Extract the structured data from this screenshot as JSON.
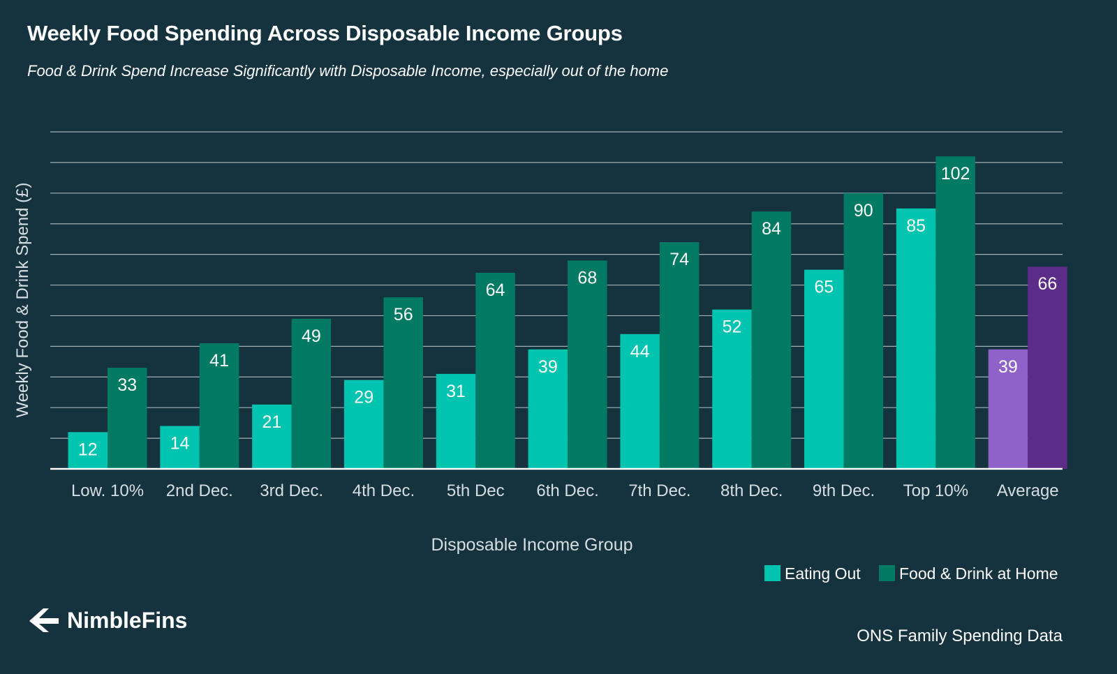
{
  "header": {
    "title": "Weekly Food Spending Across Disposable Income Groups",
    "subtitle": "Food & Drink Spend Increase Significantly with Disposable Income, especially out of the home"
  },
  "footer": {
    "brand": "NimbleFins",
    "brand_icon": "nimblefins-logo-icon",
    "source": "ONS Family Spending Data"
  },
  "colors": {
    "background": "#15333f",
    "eating_out": "#00c4b0",
    "food_at_home": "#007a63",
    "average_eating_out": "#8e62c9",
    "average_food_at_home": "#5b2d88",
    "gridline": "#a3b1b7",
    "axis": "#ffffff",
    "label": "#d6dee1"
  },
  "chart_data": {
    "type": "bar",
    "title": "Weekly Food Spending Across Disposable Income Groups",
    "subtitle": "Food & Drink Spend Increase Significantly with Disposable Income, especially out of the home",
    "xlabel": "Disposable Income Group",
    "ylabel": "Weekly Food & Drink Spend (£)",
    "ylim": [
      0,
      110
    ],
    "gridline_step": 10,
    "grid": true,
    "legend_position": "bottom-right",
    "categories": [
      "Low. 10%",
      "2nd Dec.",
      "3rd Dec.",
      "4th Dec.",
      "5th Dec",
      "6th Dec.",
      "7th Dec.",
      "8th Dec.",
      "9th Dec.",
      "Top 10%",
      "Average"
    ],
    "series": [
      {
        "name": "Eating Out",
        "values": [
          12,
          14,
          21,
          29,
          31,
          39,
          44,
          52,
          65,
          85,
          39
        ]
      },
      {
        "name": "Food & Drink at Home",
        "values": [
          33,
          41,
          49,
          56,
          64,
          68,
          74,
          84,
          90,
          102,
          66
        ]
      }
    ],
    "highlighted_category": "Average"
  }
}
